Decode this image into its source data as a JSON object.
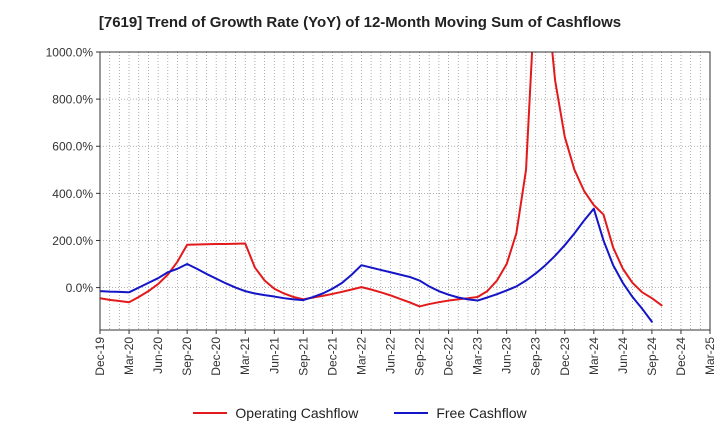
{
  "chart_data": {
    "type": "line",
    "title": "[7619]  Trend of Growth Rate (YoY) of 12-Month Moving Sum of Cashflows",
    "xlabel": "",
    "ylabel": "",
    "ylim": [
      -180,
      1000
    ],
    "yticks": [
      0,
      200,
      400,
      600,
      800,
      1000
    ],
    "ytick_labels": [
      "0.0%",
      "200.0%",
      "400.0%",
      "600.0%",
      "800.0%",
      "1000.0%"
    ],
    "x": [
      "Dec-19",
      "Jan-20",
      "Feb-20",
      "Mar-20",
      "Apr-20",
      "May-20",
      "Jun-20",
      "Jul-20",
      "Aug-20",
      "Sep-20",
      "Oct-20",
      "Nov-20",
      "Dec-20",
      "Jan-21",
      "Feb-21",
      "Mar-21",
      "Apr-21",
      "May-21",
      "Jun-21",
      "Jul-21",
      "Aug-21",
      "Sep-21",
      "Oct-21",
      "Nov-21",
      "Dec-21",
      "Jan-22",
      "Feb-22",
      "Mar-22",
      "Apr-22",
      "May-22",
      "Jun-22",
      "Jul-22",
      "Aug-22",
      "Sep-22",
      "Oct-22",
      "Nov-22",
      "Dec-22",
      "Jan-23",
      "Feb-23",
      "Mar-23",
      "Apr-23",
      "May-23",
      "Jun-23",
      "Jul-23",
      "Aug-23",
      "Sep-23",
      "Oct-23",
      "Nov-23",
      "Dec-23",
      "Jan-24",
      "Feb-24",
      "Mar-24",
      "Apr-24",
      "May-24",
      "Jun-24",
      "Jul-24",
      "Aug-24",
      "Sep-24",
      "Oct-24",
      "Nov-24",
      "Dec-24",
      "Jan-25",
      "Feb-25",
      "Mar-25"
    ],
    "xtick_labels": [
      "Dec-19",
      "Mar-20",
      "Jun-20",
      "Sep-20",
      "Dec-20",
      "Mar-21",
      "Jun-21",
      "Sep-21",
      "Dec-21",
      "Mar-22",
      "Jun-22",
      "Sep-22",
      "Dec-22",
      "Mar-23",
      "Jun-23",
      "Sep-23",
      "Dec-23",
      "Mar-24",
      "Jun-24",
      "Sep-24",
      "Dec-24",
      "Mar-25"
    ],
    "grid": true,
    "legend_position": "bottom",
    "series": [
      {
        "name": "Operating Cashflow",
        "color": "#e31a1c",
        "values": [
          -45,
          -52,
          -57,
          -62,
          -40,
          -15,
          15,
          55,
          110,
          182,
          183,
          184,
          185,
          185,
          186,
          187,
          85,
          30,
          -5,
          -25,
          -40,
          -50,
          -42,
          -35,
          -27,
          -18,
          -8,
          2,
          -8,
          -20,
          -33,
          -48,
          -63,
          -80,
          -70,
          -62,
          -55,
          -50,
          -45,
          -40,
          -15,
          30,
          100,
          230,
          500,
          1300,
          1300,
          880,
          640,
          500,
          410,
          350,
          310,
          170,
          80,
          20,
          -20,
          -45,
          -75,
          null,
          null,
          null,
          null,
          null
        ]
      },
      {
        "name": "Free Cashflow",
        "color": "#1515c8",
        "values": [
          -15,
          -17,
          -18,
          -20,
          0,
          20,
          40,
          65,
          80,
          100,
          80,
          58,
          38,
          18,
          0,
          -15,
          -25,
          -32,
          -38,
          -45,
          -50,
          -53,
          -40,
          -25,
          -5,
          20,
          55,
          95,
          85,
          75,
          65,
          55,
          45,
          30,
          5,
          -15,
          -30,
          -42,
          -50,
          -55,
          -42,
          -28,
          -12,
          5,
          30,
          60,
          95,
          135,
          180,
          230,
          285,
          335,
          200,
          95,
          20,
          -40,
          -90,
          -145,
          null,
          null,
          null,
          null,
          null,
          null
        ]
      }
    ]
  }
}
